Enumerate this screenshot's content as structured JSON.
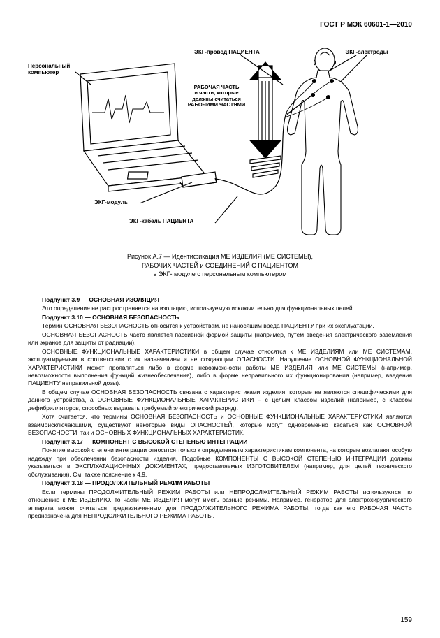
{
  "header": "ГОСТ Р МЭК 60601-1—2010",
  "labels": {
    "pc": "Персональный\nкомпьютер",
    "lead": "ЭКГ-провод ПАЦИЕНТА",
    "electrodes": "ЭКГ-электроды",
    "applied": "РАБОЧАЯ ЧАСТЬ\nи части, которые\nдолжны считаться\nРАБОЧИМИ ЧАСТЯМИ",
    "module": "ЭКГ-модуль",
    "cable": "ЭКГ-кабель ПАЦИЕНТА"
  },
  "caption": {
    "l1": "Рисунок А.7 — Идентификация МЕ ИЗДЕЛИЯ (МЕ СИСТЕМЫ),",
    "l2": "РАБОЧИХ ЧАСТЕЙ и СОЕДИНЕНИЙ С ПАЦИЕНТОМ",
    "l3": "в ЭКГ- модуле с персональным компьютером"
  },
  "sections": {
    "s39_title": "Подпункт 3.9 — ОСНОВНАЯ ИЗОЛЯЦИЯ",
    "s39_p1": "Это определение не распространяется на изоляцию, используемую исключительно для функциональных целей.",
    "s310_title": "Подпункт 3.10 — ОСНОВНАЯ БЕЗОПАСНОСТЬ",
    "s310_p1": "Термин ОСНОВНАЯ БЕЗОПАСНОСТЬ относится к устройствам, не наносящим вреда ПАЦИЕНТУ при их эксплуатации.",
    "s310_p2": "ОСНОВНАЯ БЕЗОПАСНОСТЬ часто является пассивной формой защиты (например, путем введения электрического заземления или экранов для защиты от радиации).",
    "s310_p3": "ОСНОВНЫЕ ФУНКЦИОНАЛЬНЫЕ ХАРАКТЕРИСТИКИ в общем случае относятся к МЕ ИЗДЕЛИЯМ или МЕ СИСТЕМАМ, эксплуатируемым в соответствии с их назначением и не создающим ОПАСНОСТИ. Нарушение ОСНОВНОЙ ФУНКЦИОНАЛЬНОЙ ХАРАКТЕРИСТИКИ может проявляться либо в форме невозможности работы МЕ ИЗДЕЛИЯ или МЕ СИСТЕМЫ (например, невозможности выполнения функций жизнеобеспечения), либо в форме неправильного их функционирования (например, введения ПАЦИЕНТУ неправильной дозы).",
    "s310_p4": "В общем случае ОСНОВНАЯ БЕЗОПАСНОСТЬ связана с характеристиками изделия, которые не являются специфическими для данного устройства, а ОСНОВНЫЕ ФУНКЦИОНАЛЬНЫЕ ХАРАКТЕРИСТИКИ – с целым классом изделий (например, с классом дефибрилляторов, способных выдавать требуемый электрический разряд).",
    "s310_p5": "Хотя считается, что термины ОСНОВНАЯ БЕЗОПАСНОСТЬ и ОСНОВНЫЕ ФУНКЦИОНАЛЬНЫЕ ХАРАКТЕРИСТИКИ являются взаимоисключающими, существуют некоторые виды ОПАСНОСТЕЙ, которые могут одновременно касаться как ОСНОВНОЙ БЕЗОПАСНОСТИ, так и ОСНОВНЫХ ФУНКЦИОНАЛЬНЫХ ХАРАКТЕРИСТИК.",
    "s317_title": "Подпункт 3.17 — КОМПОНЕНТ С ВЫСОКОЙ СТЕПЕНЬЮ ИНТЕГРАЦИИ",
    "s317_p1": "Понятие высокой степени интеграции относится только к определенным характеристикам компонента, на которые возлагают особую надежду при обеспечении безопасности изделия. Подобные КОМПОНЕНТЫ С ВЫСОКОЙ СТЕПЕНЬЮ ИНТЕГРАЦИИ должны указываться в ЭКСПЛУАТАЦИОННЫХ ДОКУМЕНТАХ, предоставляемых ИЗГОТОВИТЕЛЕМ (например, для целей технического обслуживания). См. также пояснение к 4.9.",
    "s318_title": "Подпункт 3.18 — ПРОДОЛЖИТЕЛЬНЫЙ РЕЖИМ РАБОТЫ",
    "s318_p1": "Если термины ПРОДОЛЖИТЕЛЬНЫЙ РЕЖИМ РАБОТЫ или НЕПРОДОЛЖИТЕЛЬНЫЙ РЕЖИМ РАБОТЫ используются по отношению к МЕ ИЗДЕЛИЮ, то части МЕ ИЗДЕЛИЯ могут иметь разные режимы. Например, генератор для электрохирургического аппарата может считаться предназначенным для ПРОДОЛЖИТЕЛЬНОГО РЕЖИМА РАБОТЫ, тогда как его РАБОЧАЯ ЧАСТЬ предназначена для НЕПРОДОЛЖИТЕЛЬНОГО РЕЖИМА РАБОТЫ."
  },
  "page_number": "159",
  "figure_style": {
    "stroke": "#000000",
    "stroke_width": 1.2,
    "fill": "#ffffff",
    "label_underline": true
  }
}
